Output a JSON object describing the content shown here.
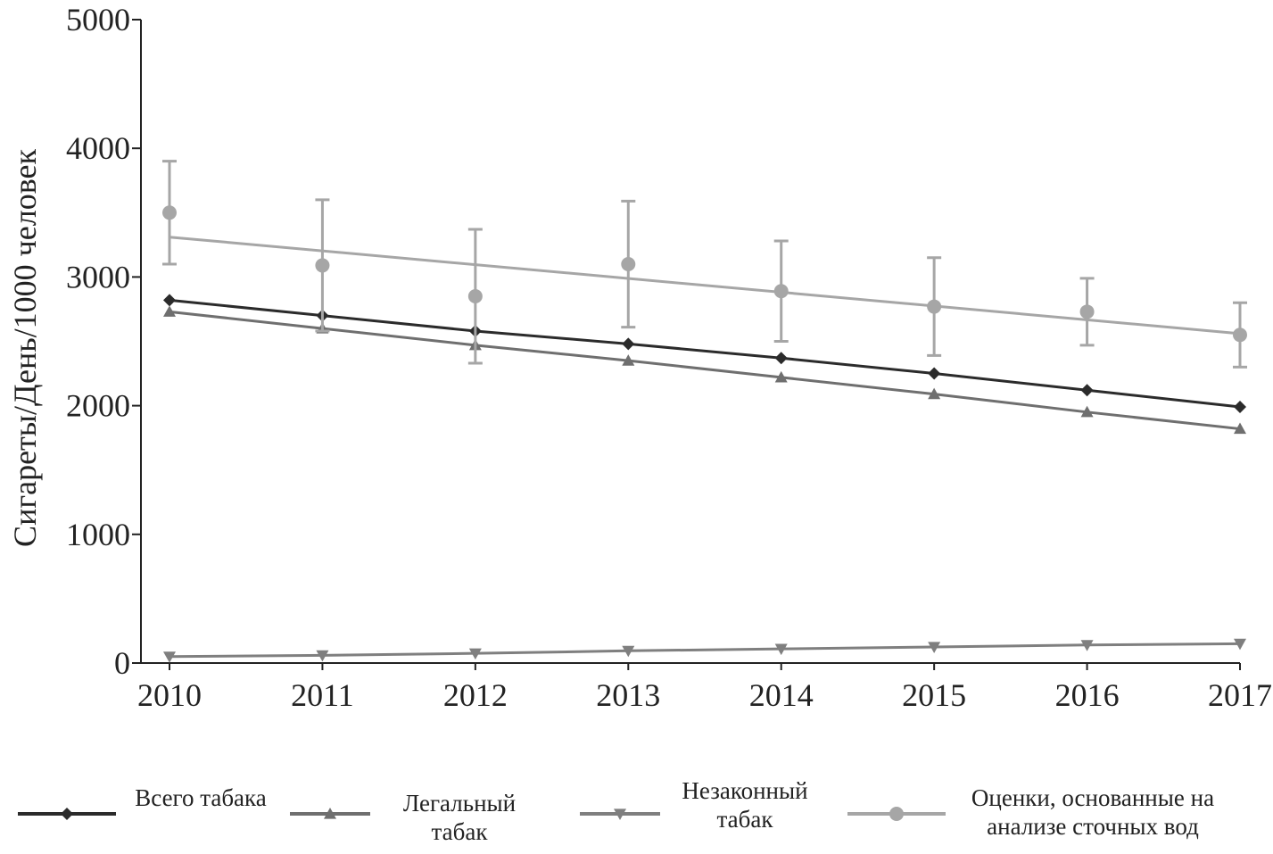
{
  "chart_data": {
    "type": "line",
    "y_label": "Сигареты/День/1000 человек",
    "x": [
      2010,
      2011,
      2012,
      2013,
      2014,
      2015,
      2016,
      2017
    ],
    "xlim": [
      2010,
      2017
    ],
    "xticks": [
      2010,
      2011,
      2012,
      2013,
      2014,
      2015,
      2016,
      2017
    ],
    "ylim": [
      0,
      5000
    ],
    "yticks": [
      0,
      1000,
      2000,
      3000,
      4000,
      5000
    ],
    "series": [
      {
        "name": "Всего табака",
        "color": "#2b2b2b",
        "marker": "diamond",
        "values": [
          2820,
          2700,
          2580,
          2480,
          2370,
          2250,
          2120,
          1990
        ]
      },
      {
        "name": "Легальный табак",
        "color": "#6f6f6f",
        "marker": "triangle-up",
        "values": [
          2730,
          2600,
          2470,
          2350,
          2220,
          2090,
          1950,
          1820
        ]
      },
      {
        "name": "Незаконный табак",
        "color": "#7f7f7f",
        "marker": "triangle-down",
        "values": [
          50,
          60,
          75,
          95,
          110,
          125,
          140,
          150
        ]
      },
      {
        "name": "Оценки, основанные на анализе сточных вод",
        "color": "#a6a6a6",
        "marker": "circle",
        "values": [
          3500,
          3090,
          2850,
          3100,
          2890,
          2770,
          2730,
          2550
        ],
        "errors": [
          400,
          510,
          520,
          490,
          390,
          380,
          260,
          250
        ],
        "trend": [
          3310,
          2560
        ]
      }
    ]
  }
}
